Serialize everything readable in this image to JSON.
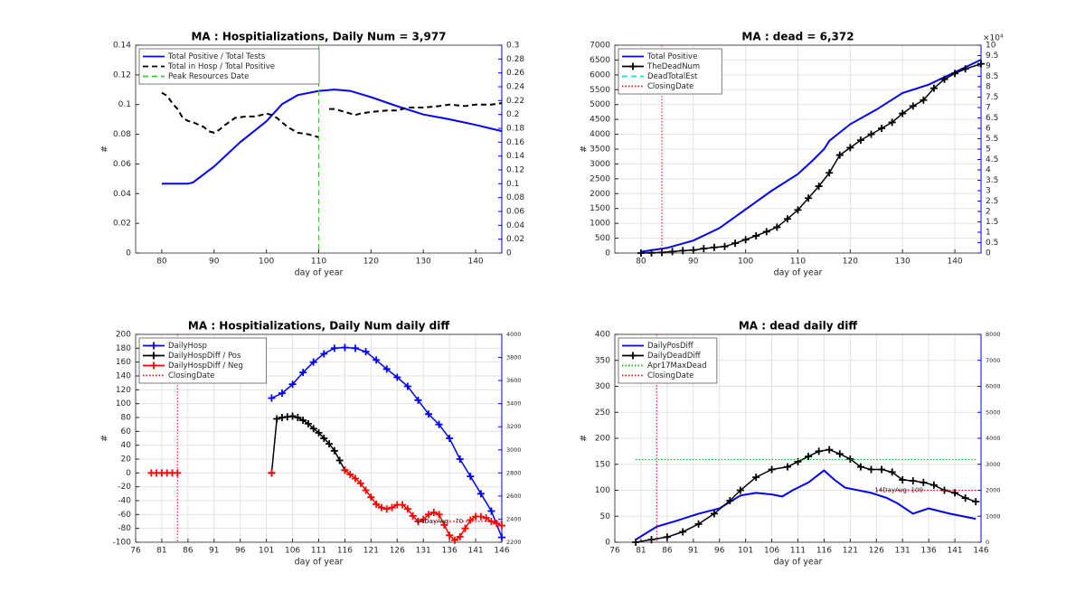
{
  "chart_data": [
    {
      "type": "line",
      "title": "MA : Hospitializations, Daily Num = 3,977",
      "xlabel": "day of year",
      "ylabel": "#",
      "xlim": [
        75,
        145
      ],
      "xticks": [
        80,
        90,
        100,
        110,
        120,
        130,
        140
      ],
      "ylim": [
        0,
        0.14
      ],
      "yticks": [
        0,
        0.02,
        0.04,
        0.06,
        0.08,
        0.1,
        0.12,
        0.14
      ],
      "y2lim": [
        0,
        0.3
      ],
      "y2ticks": [
        0,
        0.02,
        0.04,
        0.06,
        0.08,
        0.1,
        0.12,
        0.14,
        0.16,
        0.18,
        0.2,
        0.22,
        0.24,
        0.26,
        0.28,
        0.3
      ],
      "y2color": "#0000ff",
      "grid": false,
      "legend": "upper left",
      "series": [
        {
          "name": "Total Positive / Total Tests",
          "color": "#0000ff",
          "style": "solid",
          "axis": "y2",
          "x": [
            80,
            85,
            86,
            90,
            95,
            100,
            103,
            106,
            110,
            113,
            116,
            120,
            125,
            130,
            135,
            140,
            145
          ],
          "values": [
            0.1,
            0.1,
            0.102,
            0.125,
            0.16,
            0.19,
            0.215,
            0.228,
            0.234,
            0.236,
            0.234,
            0.225,
            0.212,
            0.2,
            0.193,
            0.185,
            0.176
          ]
        },
        {
          "name": "Total in Hosp / Total Positive",
          "color": "#000000",
          "style": "dashed",
          "x": [
            80,
            81,
            82,
            83,
            84,
            85,
            86,
            88,
            89,
            90,
            91,
            92,
            94,
            96,
            98,
            100,
            101,
            102,
            104,
            106,
            108,
            110,
            111,
            112,
            113,
            115,
            117,
            118,
            120,
            123,
            125,
            127,
            130,
            133,
            135,
            138,
            140,
            143,
            145
          ],
          "values": [
            0.108,
            0.106,
            0.101,
            0.097,
            0.091,
            0.089,
            0.088,
            0.085,
            0.082,
            0.081,
            0.083,
            0.086,
            0.091,
            0.092,
            0.092,
            0.094,
            0.093,
            0.091,
            0.085,
            0.081,
            0.08,
            0.078,
            null,
            0.097,
            0.097,
            0.095,
            0.093,
            0.094,
            0.095,
            0.096,
            0.096,
            0.098,
            0.098,
            0.099,
            0.1,
            0.099,
            0.1,
            0.1,
            0.101
          ]
        }
      ],
      "vlines": [
        {
          "name": "Peak Resources Date",
          "x": 110,
          "color": "#33cc33",
          "style": "dashed"
        }
      ]
    },
    {
      "type": "line",
      "title": "MA : dead = 6,372",
      "xlabel": "day of year",
      "ylabel": "#",
      "xlim": [
        75,
        145
      ],
      "xticks": [
        80,
        90,
        100,
        110,
        120,
        130,
        140
      ],
      "ylim": [
        0,
        7000
      ],
      "yticks": [
        0,
        500,
        1000,
        1500,
        2000,
        2500,
        3000,
        3500,
        4000,
        4500,
        5000,
        5500,
        6000,
        6500,
        7000
      ],
      "y2lim": [
        0,
        100000
      ],
      "y2multiplier": "×10⁴",
      "y2ticks": [
        0,
        {
          "value": 5000,
          "label": "0.5"
        },
        {
          "value": 10000,
          "label": "1"
        },
        {
          "value": 15000,
          "label": "1.5"
        },
        {
          "value": 20000,
          "label": "2"
        },
        {
          "value": 25000,
          "label": "2.5"
        },
        {
          "value": 30000,
          "label": "3"
        },
        {
          "value": 35000,
          "label": "3.5"
        },
        {
          "value": 40000,
          "label": "4"
        },
        {
          "value": 45000,
          "label": "4.5"
        },
        {
          "value": 50000,
          "label": "5"
        },
        {
          "value": 55000,
          "label": "5.5"
        },
        {
          "value": 60000,
          "label": "6"
        },
        {
          "value": 65000,
          "label": "6.5"
        },
        {
          "value": 70000,
          "label": "7"
        },
        {
          "value": 75000,
          "label": "7.5"
        },
        {
          "value": 80000,
          "label": "8"
        },
        {
          "value": 85000,
          "label": "8.5"
        },
        {
          "value": 90000,
          "label": "9"
        },
        {
          "value": 95000,
          "label": "9.5"
        },
        {
          "value": 100000,
          "label": "10"
        }
      ],
      "y2color": "#0000ff",
      "grid": true,
      "legend": "upper left",
      "series": [
        {
          "name": "Total Positive",
          "color": "#0000ff",
          "style": "solid",
          "axis": "y2",
          "x": [
            80,
            85,
            90,
            95,
            100,
            105,
            110,
            113,
            115,
            116,
            120,
            125,
            130,
            135,
            140,
            145
          ],
          "values": [
            600,
            2500,
            6000,
            12000,
            21000,
            30000,
            38000,
            45000,
            50000,
            54000,
            62000,
            69000,
            77000,
            81000,
            87000,
            93000
          ]
        },
        {
          "name": "TheDeadNum",
          "color": "#000000",
          "style": "solid",
          "marker": "+",
          "x": [
            80,
            82,
            84,
            86,
            88,
            90,
            92,
            94,
            96,
            98,
            100,
            102,
            104,
            106,
            108,
            110,
            112,
            114,
            116,
            118,
            120,
            122,
            124,
            126,
            128,
            130,
            132,
            134,
            136,
            138,
            140,
            142,
            145
          ],
          "values": [
            0,
            5,
            20,
            50,
            80,
            100,
            150,
            190,
            220,
            330,
            450,
            580,
            720,
            870,
            1150,
            1450,
            1850,
            2250,
            2700,
            3300,
            3550,
            3800,
            4000,
            4200,
            4400,
            4700,
            4950,
            5150,
            5550,
            5850,
            6050,
            6200,
            6372
          ]
        },
        {
          "name": "DeadTotalEst",
          "color": "#00e5e5",
          "style": "dashed",
          "x": [],
          "values": []
        }
      ],
      "vlines": [
        {
          "name": "ClosingDate",
          "x": 84,
          "color": "#ff0000",
          "style": "dotted"
        }
      ]
    },
    {
      "type": "line",
      "title": "MA : Hospitializations, Daily Num daily diff",
      "xlabel": "day of year",
      "ylabel": "#",
      "xlim": [
        76,
        146
      ],
      "xticks": [
        76,
        81,
        86,
        91,
        96,
        101,
        106,
        111,
        116,
        121,
        126,
        131,
        136,
        141,
        146
      ],
      "ylim": [
        -100,
        200
      ],
      "yticks": [
        -100,
        -80,
        -60,
        -40,
        -20,
        0,
        20,
        40,
        60,
        80,
        100,
        120,
        140,
        160,
        180,
        200
      ],
      "y2lim": [
        2200,
        4000
      ],
      "y2ticks": [
        2200,
        2400,
        2600,
        2800,
        3000,
        3200,
        3400,
        3600,
        3800,
        4000
      ],
      "y2color": "#0000ff",
      "grid": true,
      "legend": "upper left",
      "series": [
        {
          "name": "DailyHosp",
          "color": "#0000ff",
          "style": "solid",
          "marker": "+",
          "axis": "y2",
          "x": [
            102,
            104,
            106,
            108,
            110,
            112,
            114,
            116,
            118,
            120,
            122,
            124,
            126,
            128,
            130,
            132,
            134,
            136,
            138,
            140,
            142,
            144,
            146
          ],
          "values": [
            3448,
            3490,
            3568,
            3670,
            3760,
            3832,
            3880,
            3886,
            3880,
            3850,
            3778,
            3700,
            3628,
            3550,
            3430,
            3310,
            3220,
            3100,
            2920,
            2770,
            2620,
            2470,
            2242
          ]
        },
        {
          "name": "DailyHospDiff / Pos",
          "color": "#000000",
          "style": "solid",
          "marker": "+",
          "x": [
            102,
            103,
            104,
            105,
            106,
            107,
            108,
            109,
            110,
            111,
            112,
            113,
            114,
            115,
            116
          ],
          "values": [
            0,
            78,
            80,
            81,
            82,
            80,
            76,
            71,
            64,
            58,
            50,
            42,
            32,
            18,
            4
          ]
        },
        {
          "name": "DailyHospDiff / Neg",
          "color": "#ff0000",
          "style": "solid",
          "marker": "+",
          "x": [
            79,
            80,
            81,
            82,
            83,
            84,
            93,
            102,
            109,
            116,
            117,
            118,
            119,
            120,
            121,
            122,
            123,
            124,
            125,
            126,
            127,
            128,
            129,
            130,
            131,
            132,
            133,
            134,
            135,
            136,
            137,
            138,
            139,
            140,
            141,
            142,
            143,
            144,
            145,
            146
          ],
          "values": [
            0,
            0,
            0,
            0,
            0,
            0,
            null,
            0,
            null,
            4,
            -2,
            -8,
            -15,
            -25,
            -35,
            -45,
            -50,
            -52,
            -50,
            -46,
            -46,
            -52,
            -62,
            -70,
            -67,
            -60,
            -57,
            -60,
            -75,
            -90,
            -97,
            -92,
            -80,
            -68,
            -63,
            -63,
            -65,
            -70,
            -73,
            -76
          ]
        }
      ],
      "hlines": [
        {
          "label": "14DayAvg: -70",
          "y": -70,
          "xrange": [
            130,
            146
          ],
          "color": "#ff0000",
          "style": "dotted"
        }
      ],
      "vlines": [
        {
          "name": "ClosingDate",
          "x": 84,
          "color": "#ff0000",
          "style": "dotted"
        }
      ]
    },
    {
      "type": "line",
      "title": "MA : dead daily diff",
      "xlabel": "day of year",
      "ylabel": "#",
      "xlim": [
        76,
        146
      ],
      "xticks": [
        76,
        81,
        86,
        91,
        96,
        101,
        106,
        111,
        116,
        121,
        126,
        131,
        136,
        141,
        146
      ],
      "ylim": [
        0,
        400
      ],
      "yticks": [
        0,
        50,
        100,
        150,
        200,
        250,
        300,
        350,
        400
      ],
      "y2lim": [
        0,
        8000
      ],
      "y2ticks": [
        0,
        1000,
        2000,
        3000,
        4000,
        5000,
        6000,
        7000,
        8000
      ],
      "y2color": "#0000ff",
      "grid": true,
      "legend": "upper left",
      "series": [
        {
          "name": "DailyPosDiff",
          "color": "#0000ff",
          "style": "solid",
          "axis": "y2",
          "x": [
            80,
            84,
            88,
            92,
            96,
            100,
            103,
            106,
            108,
            110,
            113,
            116,
            118,
            120,
            125,
            128,
            130,
            133,
            136,
            140,
            145
          ],
          "values": [
            100,
            600,
            840,
            1100,
            1300,
            1800,
            1900,
            1840,
            1760,
            2000,
            2300,
            2760,
            2400,
            2100,
            1900,
            1700,
            1500,
            1100,
            1300,
            1100,
            900
          ]
        },
        {
          "name": "DailyDeadDiff",
          "color": "#000000",
          "style": "solid",
          "marker": "+",
          "x": [
            80,
            83,
            86,
            89,
            92,
            95,
            98,
            100,
            103,
            106,
            109,
            111,
            113,
            115,
            117,
            119,
            121,
            123,
            125,
            127,
            129,
            131,
            133,
            135,
            137,
            139,
            141,
            143,
            145
          ],
          "values": [
            0,
            5,
            10,
            20,
            35,
            55,
            80,
            100,
            125,
            140,
            145,
            155,
            165,
            175,
            178,
            170,
            160,
            145,
            140,
            140,
            135,
            120,
            118,
            115,
            110,
            100,
            95,
            85,
            78
          ]
        }
      ],
      "hlines": [
        {
          "name": "Apr17MaxDead",
          "y": 159,
          "xrange": [
            80,
            145
          ],
          "color": "#00bb00",
          "style": "dotted"
        },
        {
          "label": "14DayAvg: 100",
          "y": 100,
          "xrange": [
            126,
            146
          ],
          "color": "#ff0000",
          "style": "dotted"
        }
      ],
      "vlines": [
        {
          "name": "ClosingDate",
          "x": 84,
          "color": "#ff0000",
          "style": "dotted"
        }
      ]
    }
  ]
}
